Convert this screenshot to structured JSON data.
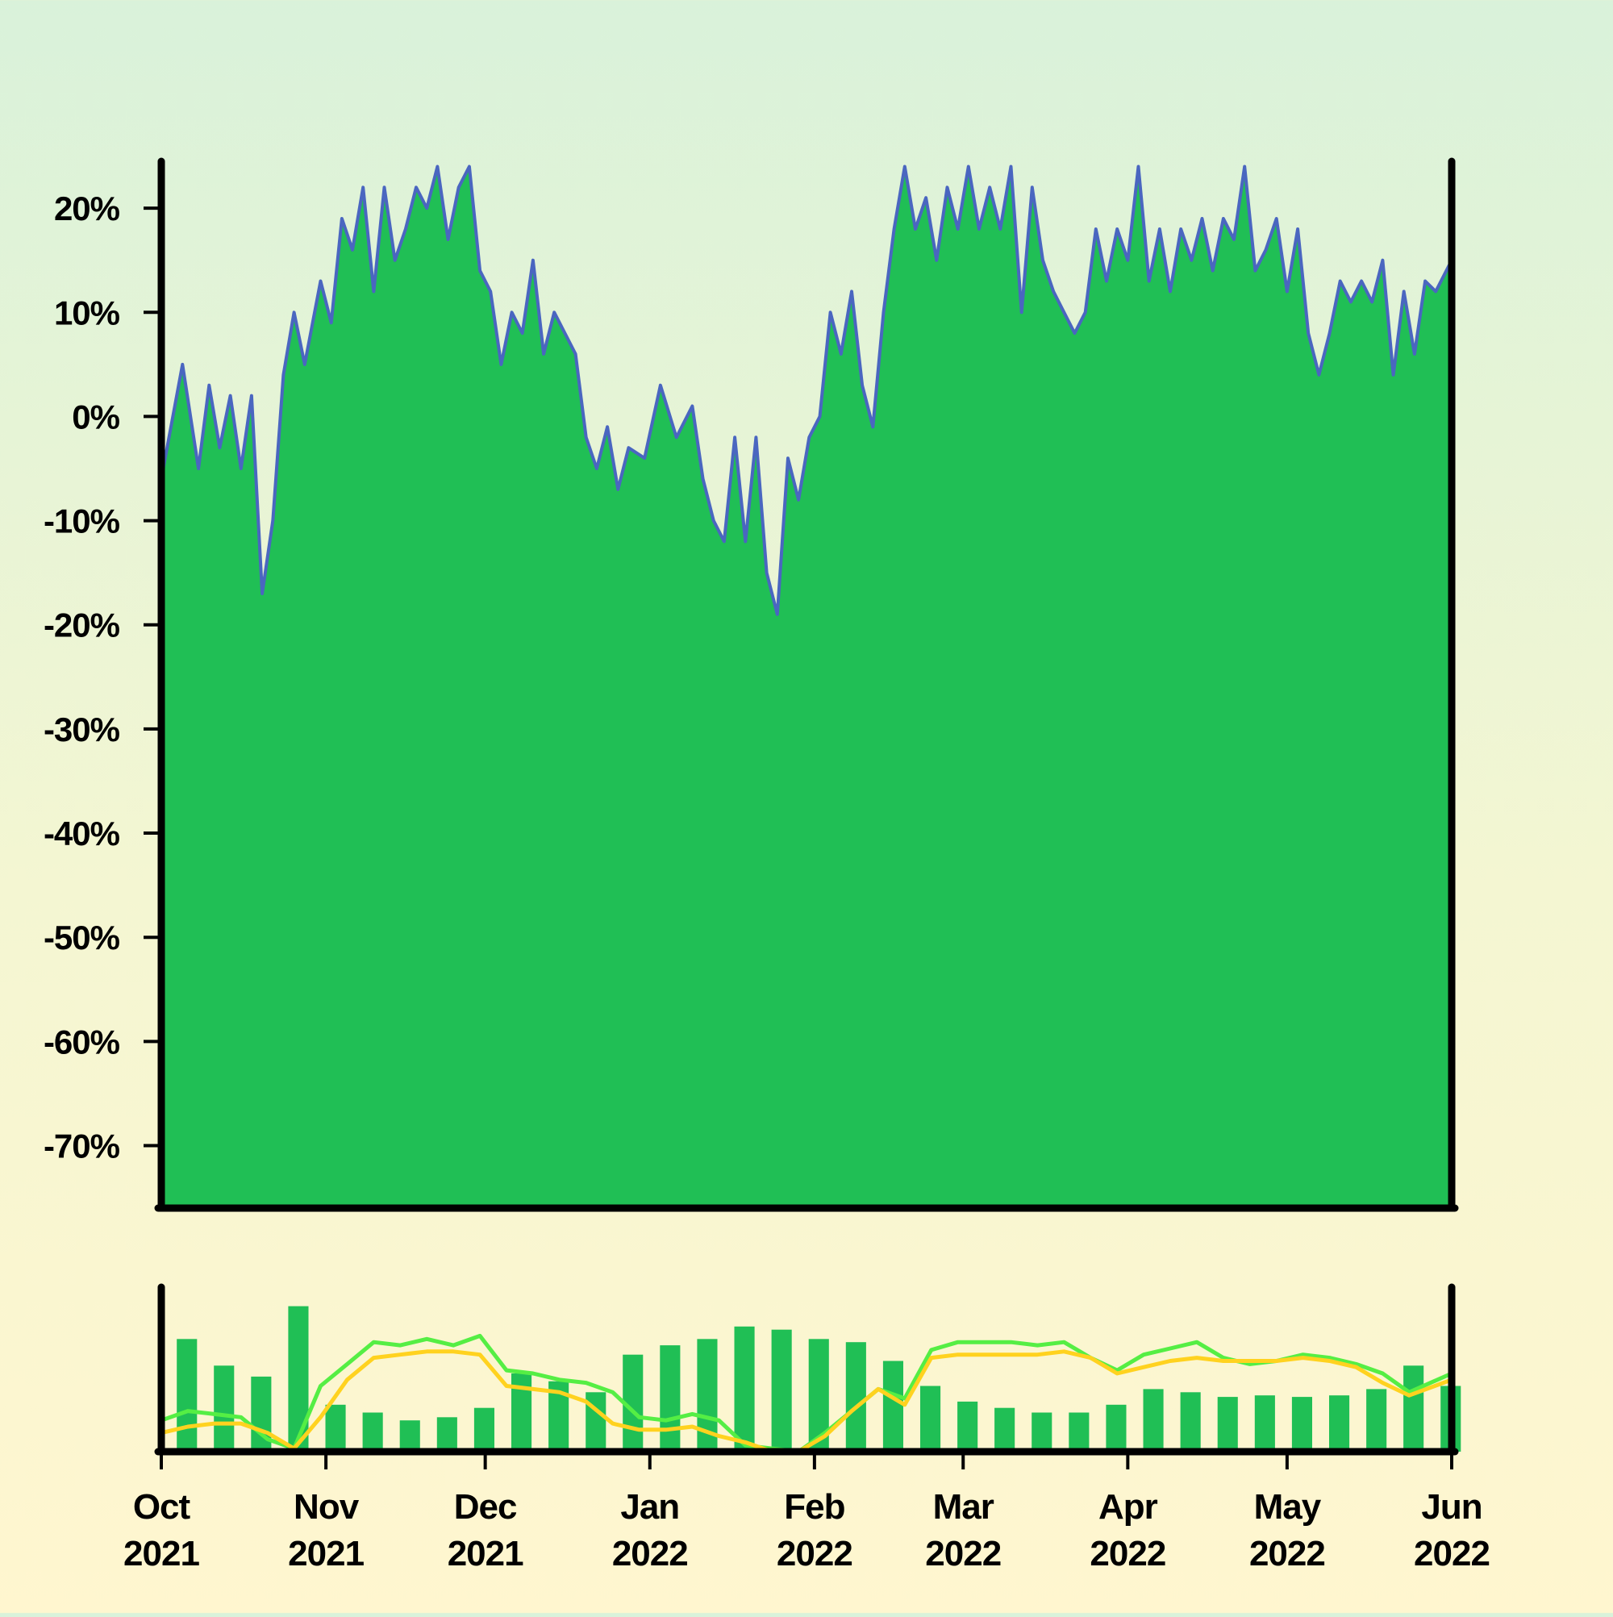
{
  "chart_data": [
    {
      "type": "area",
      "title": "",
      "xlabel": "",
      "ylabel": "",
      "x_range": [
        "2021-10-01",
        "2022-06-01"
      ],
      "ylim": [
        -0.76,
        0.245
      ],
      "yticks": [
        {
          "value": 0.2,
          "label": "20%"
        },
        {
          "value": 0.1,
          "label": "10%"
        },
        {
          "value": 0.0,
          "label": "0%"
        },
        {
          "value": -0.1,
          "label": "-10%"
        },
        {
          "value": -0.2,
          "label": "-20%"
        },
        {
          "value": -0.3,
          "label": "-30%"
        },
        {
          "value": -0.4,
          "label": "-40%"
        },
        {
          "value": -0.5,
          "label": "-50%"
        },
        {
          "value": -0.6,
          "label": "-60%"
        },
        {
          "value": -0.7,
          "label": "-70%"
        }
      ],
      "grid": false,
      "fill_color": "#20bf55",
      "line_color": "#4a66c0",
      "series": [
        {
          "x": [
            "2021-10-01",
            "2021-10-05",
            "2021-10-08",
            "2021-10-10",
            "2021-10-12",
            "2021-10-14",
            "2021-10-16",
            "2021-10-18",
            "2021-10-20",
            "2021-10-22",
            "2021-10-24",
            "2021-10-26",
            "2021-10-28",
            "2021-10-31",
            "2021-11-02",
            "2021-11-04",
            "2021-11-06",
            "2021-11-08",
            "2021-11-10",
            "2021-11-12",
            "2021-11-14",
            "2021-11-16",
            "2021-11-18",
            "2021-11-20",
            "2021-11-22",
            "2021-11-24",
            "2021-11-26",
            "2021-11-28",
            "2021-11-30",
            "2021-12-02",
            "2021-12-04",
            "2021-12-06",
            "2021-12-08",
            "2021-12-10",
            "2021-12-12",
            "2021-12-14",
            "2021-12-16",
            "2021-12-18",
            "2021-12-20",
            "2021-12-22",
            "2021-12-24",
            "2021-12-26",
            "2021-12-28",
            "2021-12-31",
            "2022-01-03",
            "2022-01-06",
            "2022-01-09",
            "2022-01-11",
            "2022-01-13",
            "2022-01-15",
            "2022-01-17",
            "2022-01-19",
            "2022-01-21",
            "2022-01-23",
            "2022-01-25",
            "2022-01-27",
            "2022-01-29",
            "2022-01-31",
            "2022-02-02",
            "2022-02-04",
            "2022-02-06",
            "2022-02-08",
            "2022-02-10",
            "2022-02-12",
            "2022-02-14",
            "2022-02-16",
            "2022-02-18",
            "2022-02-20",
            "2022-02-22",
            "2022-02-24",
            "2022-02-26",
            "2022-02-28",
            "2022-03-02",
            "2022-03-04",
            "2022-03-06",
            "2022-03-08",
            "2022-03-10",
            "2022-03-12",
            "2022-03-14",
            "2022-03-16",
            "2022-03-18",
            "2022-03-20",
            "2022-03-22",
            "2022-03-24",
            "2022-03-26",
            "2022-03-28",
            "2022-03-30",
            "2022-04-01",
            "2022-04-03",
            "2022-04-05",
            "2022-04-07",
            "2022-04-09",
            "2022-04-11",
            "2022-04-13",
            "2022-04-15",
            "2022-04-17",
            "2022-04-19",
            "2022-04-21",
            "2022-04-23",
            "2022-04-25",
            "2022-04-27",
            "2022-04-29",
            "2022-05-01",
            "2022-05-03",
            "2022-05-05",
            "2022-05-07",
            "2022-05-09",
            "2022-05-11",
            "2022-05-13",
            "2022-05-15",
            "2022-05-17",
            "2022-05-19",
            "2022-05-21",
            "2022-05-23",
            "2022-05-25",
            "2022-05-27",
            "2022-05-29",
            "2022-06-01"
          ],
          "y": [
            -0.06,
            0.05,
            -0.05,
            0.03,
            -0.03,
            0.02,
            -0.05,
            0.02,
            -0.17,
            -0.1,
            0.04,
            0.1,
            0.05,
            0.13,
            0.09,
            0.19,
            0.16,
            0.22,
            0.12,
            0.22,
            0.15,
            0.18,
            0.22,
            0.2,
            0.24,
            0.17,
            0.22,
            0.24,
            0.14,
            0.12,
            0.05,
            0.1,
            0.08,
            0.15,
            0.06,
            0.1,
            0.08,
            0.06,
            -0.02,
            -0.05,
            -0.01,
            -0.07,
            -0.03,
            -0.04,
            0.03,
            -0.02,
            0.01,
            -0.06,
            -0.1,
            -0.12,
            -0.02,
            -0.12,
            -0.02,
            -0.15,
            -0.19,
            -0.04,
            -0.08,
            -0.02,
            0.0,
            0.1,
            0.06,
            0.12,
            0.03,
            -0.01,
            0.1,
            0.18,
            0.24,
            0.18,
            0.21,
            0.15,
            0.22,
            0.18,
            0.24,
            0.18,
            0.22,
            0.18,
            0.24,
            0.1,
            0.22,
            0.15,
            0.12,
            0.1,
            0.08,
            0.1,
            0.18,
            0.13,
            0.18,
            0.15,
            0.24,
            0.13,
            0.18,
            0.12,
            0.18,
            0.15,
            0.19,
            0.14,
            0.19,
            0.17,
            0.24,
            0.14,
            0.16,
            0.19,
            0.12,
            0.18,
            0.08,
            0.04,
            0.08,
            0.13,
            0.11,
            0.13,
            0.11,
            0.15,
            0.04,
            0.12,
            0.06,
            0.13,
            0.12,
            0.15
          ]
        }
      ]
    },
    {
      "type": "bar",
      "title": "",
      "xlabel": "",
      "ylabel": "",
      "x_range": [
        "2021-10-01",
        "2022-06-01"
      ],
      "ylim": [
        0,
        1
      ],
      "grid": false,
      "xticks": [
        {
          "value": "2021-10-01",
          "label": [
            "Oct",
            "2021"
          ]
        },
        {
          "value": "2021-11-01",
          "label": [
            "Nov",
            "2021"
          ]
        },
        {
          "value": "2021-12-01",
          "label": [
            "Dec",
            "2021"
          ]
        },
        {
          "value": "2022-01-01",
          "label": [
            "Jan",
            "2022"
          ]
        },
        {
          "value": "2022-02-01",
          "label": [
            "Feb",
            "2022"
          ]
        },
        {
          "value": "2022-03-01",
          "label": [
            "Mar",
            "2022"
          ]
        },
        {
          "value": "2022-04-01",
          "label": [
            "Apr",
            "2022"
          ]
        },
        {
          "value": "2022-05-01",
          "label": [
            "May",
            "2022"
          ]
        },
        {
          "value": "2022-06-01",
          "label": [
            "Jun",
            "2022"
          ]
        }
      ],
      "bar_color": "#20bf55",
      "bars": {
        "x": [
          "2021-10-02",
          "2021-10-09",
          "2021-10-16",
          "2021-10-23",
          "2021-10-30",
          "2021-11-06",
          "2021-11-13",
          "2021-11-20",
          "2021-11-27",
          "2021-12-04",
          "2021-12-11",
          "2021-12-18",
          "2021-12-25",
          "2022-01-01",
          "2022-01-08",
          "2022-01-15",
          "2022-01-22",
          "2022-01-29",
          "2022-02-05",
          "2022-02-12",
          "2022-02-19",
          "2022-02-26",
          "2022-03-05",
          "2022-03-12",
          "2022-03-19",
          "2022-03-26",
          "2022-04-02",
          "2022-04-09",
          "2022-04-16",
          "2022-04-23",
          "2022-04-30",
          "2022-05-07",
          "2022-05-14",
          "2022-05-21",
          "2022-05-28"
        ],
        "values": [
          0.72,
          0.55,
          0.48,
          0.93,
          0.3,
          0.25,
          0.2,
          0.22,
          0.28,
          0.5,
          0.45,
          0.38,
          0.62,
          0.68,
          0.72,
          0.8,
          0.78,
          0.72,
          0.7,
          0.58,
          0.42,
          0.32,
          0.28,
          0.25,
          0.25,
          0.3,
          0.4,
          0.38,
          0.35,
          0.36,
          0.35,
          0.36,
          0.4,
          0.55,
          0.42
        ]
      },
      "series": [
        {
          "color": "#55ee44",
          "x": [
            "2021-10-01",
            "2021-10-06",
            "2021-10-11",
            "2021-10-16",
            "2021-10-21",
            "2021-10-26",
            "2021-10-31",
            "2021-11-05",
            "2021-11-10",
            "2021-11-15",
            "2021-11-20",
            "2021-11-25",
            "2021-11-30",
            "2021-12-05",
            "2021-12-10",
            "2021-12-15",
            "2021-12-20",
            "2021-12-25",
            "2021-12-30",
            "2022-01-04",
            "2022-01-09",
            "2022-01-14",
            "2022-01-19",
            "2022-01-24",
            "2022-01-29",
            "2022-02-03",
            "2022-02-08",
            "2022-02-13",
            "2022-02-18",
            "2022-02-23",
            "2022-02-28",
            "2022-03-05",
            "2022-03-10",
            "2022-03-15",
            "2022-03-20",
            "2022-03-25",
            "2022-03-30",
            "2022-04-04",
            "2022-04-09",
            "2022-04-14",
            "2022-04-19",
            "2022-04-24",
            "2022-04-29",
            "2022-05-04",
            "2022-05-09",
            "2022-05-14",
            "2022-05-19",
            "2022-05-24",
            "2022-06-01"
          ],
          "values": [
            0.2,
            0.26,
            0.24,
            0.22,
            0.08,
            0.02,
            0.42,
            0.56,
            0.7,
            0.68,
            0.72,
            0.68,
            0.74,
            0.52,
            0.5,
            0.46,
            0.44,
            0.38,
            0.22,
            0.2,
            0.24,
            0.2,
            0.04,
            0.02,
            0.0,
            0.12,
            0.26,
            0.4,
            0.34,
            0.65,
            0.7,
            0.7,
            0.7,
            0.68,
            0.7,
            0.6,
            0.52,
            0.62,
            0.66,
            0.7,
            0.6,
            0.56,
            0.58,
            0.62,
            0.6,
            0.56,
            0.5,
            0.38,
            0.5
          ]
        },
        {
          "color": "#ffd21f",
          "x": [
            "2021-10-01",
            "2021-10-06",
            "2021-10-11",
            "2021-10-16",
            "2021-10-21",
            "2021-10-26",
            "2021-10-31",
            "2021-11-05",
            "2021-11-10",
            "2021-11-15",
            "2021-11-20",
            "2021-11-25",
            "2021-11-30",
            "2021-12-05",
            "2021-12-10",
            "2021-12-15",
            "2021-12-20",
            "2021-12-25",
            "2021-12-30",
            "2022-01-04",
            "2022-01-09",
            "2022-01-14",
            "2022-01-19",
            "2022-01-24",
            "2022-01-29",
            "2022-02-03",
            "2022-02-08",
            "2022-02-13",
            "2022-02-18",
            "2022-02-23",
            "2022-02-28",
            "2022-03-05",
            "2022-03-10",
            "2022-03-15",
            "2022-03-20",
            "2022-03-25",
            "2022-03-30",
            "2022-04-04",
            "2022-04-09",
            "2022-04-14",
            "2022-04-19",
            "2022-04-24",
            "2022-04-29",
            "2022-05-04",
            "2022-05-09",
            "2022-05-14",
            "2022-05-19",
            "2022-05-24",
            "2022-06-01"
          ],
          "values": [
            0.12,
            0.16,
            0.18,
            0.18,
            0.12,
            0.02,
            0.22,
            0.46,
            0.6,
            0.62,
            0.64,
            0.64,
            0.62,
            0.42,
            0.4,
            0.38,
            0.32,
            0.18,
            0.14,
            0.14,
            0.16,
            0.1,
            0.06,
            0.0,
            0.0,
            0.1,
            0.26,
            0.4,
            0.3,
            0.6,
            0.62,
            0.62,
            0.62,
            0.62,
            0.64,
            0.6,
            0.5,
            0.54,
            0.58,
            0.6,
            0.58,
            0.58,
            0.58,
            0.6,
            0.58,
            0.54,
            0.44,
            0.36,
            0.46
          ]
        }
      ]
    }
  ]
}
